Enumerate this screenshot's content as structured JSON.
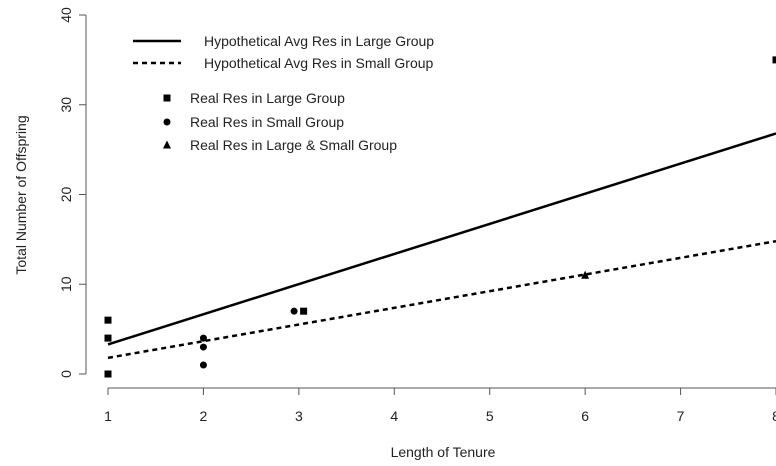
{
  "chart_data": {
    "type": "scatter",
    "title": "",
    "xlabel": "Length of Tenure",
    "ylabel": "Total Number of Offspring",
    "xlim": [
      1,
      8
    ],
    "ylim": [
      0,
      40
    ],
    "x_ticks": [
      1,
      2,
      3,
      4,
      5,
      6,
      7,
      8
    ],
    "y_ticks": [
      0,
      10,
      20,
      30,
      40
    ],
    "grid": false,
    "legend_position": "top-left",
    "lines": [
      {
        "name": "Hypothetical Avg Res in Large Group",
        "style": "solid",
        "x": [
          1,
          8
        ],
        "y": [
          3.3,
          26.8
        ]
      },
      {
        "name": "Hypothetical Avg Res in Small Group",
        "style": "dashed",
        "x": [
          1,
          8
        ],
        "y": [
          1.8,
          14.8
        ]
      }
    ],
    "series": [
      {
        "name": "Real Res in Large Group",
        "marker": "square",
        "points": [
          {
            "x": 1,
            "y": 0
          },
          {
            "x": 1,
            "y": 4
          },
          {
            "x": 1,
            "y": 6
          },
          {
            "x": 3.05,
            "y": 7
          },
          {
            "x": 8,
            "y": 35
          }
        ]
      },
      {
        "name": "Real Res in Small Group",
        "marker": "circle",
        "points": [
          {
            "x": 2,
            "y": 1
          },
          {
            "x": 2,
            "y": 3
          },
          {
            "x": 2,
            "y": 4
          },
          {
            "x": 2.95,
            "y": 7
          }
        ]
      },
      {
        "name": "Real Res in Large & Small Group",
        "marker": "triangle",
        "points": [
          {
            "x": 6,
            "y": 11
          }
        ]
      }
    ],
    "colors": {
      "ink": "#000000",
      "axis": "#555555",
      "text": "#222222"
    }
  }
}
